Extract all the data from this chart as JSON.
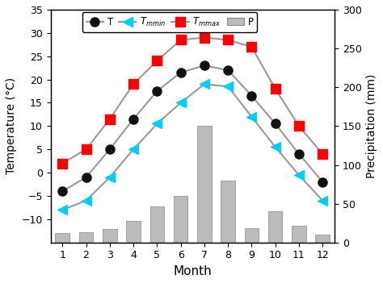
{
  "months": [
    1,
    2,
    3,
    4,
    5,
    6,
    7,
    8,
    9,
    10,
    11,
    12
  ],
  "T": [
    -4,
    -1,
    5,
    11.5,
    17.5,
    21.5,
    23,
    22,
    16.5,
    10.5,
    4,
    -2
  ],
  "Tmmin": [
    -8,
    -6,
    -1,
    5,
    10.5,
    15,
    19,
    18.5,
    12,
    5.5,
    -0.5,
    -6
  ],
  "Tmmax": [
    2,
    5,
    11.5,
    19,
    24,
    28.5,
    29,
    28.5,
    27,
    18,
    10,
    4
  ],
  "P": [
    12,
    13,
    17,
    28,
    47,
    60,
    150,
    80,
    18,
    40,
    22,
    10
  ],
  "T_color": "#111111",
  "Tmmin_color": "#00ccff",
  "Tmmax_color": "#ff0000",
  "P_color": "#bbbbbb",
  "line_color": "#999999",
  "T_ylim": [
    -15,
    35
  ],
  "P_ylim": [
    0,
    300
  ],
  "T_yticks": [
    -10,
    -5,
    0,
    5,
    10,
    15,
    20,
    25,
    30,
    35
  ],
  "P_yticks": [
    0,
    50,
    100,
    150,
    200,
    250,
    300
  ],
  "xlabel": "Month",
  "ylabel_left": "Temperature (°C)",
  "ylabel_right": "Precipitation (mm)"
}
